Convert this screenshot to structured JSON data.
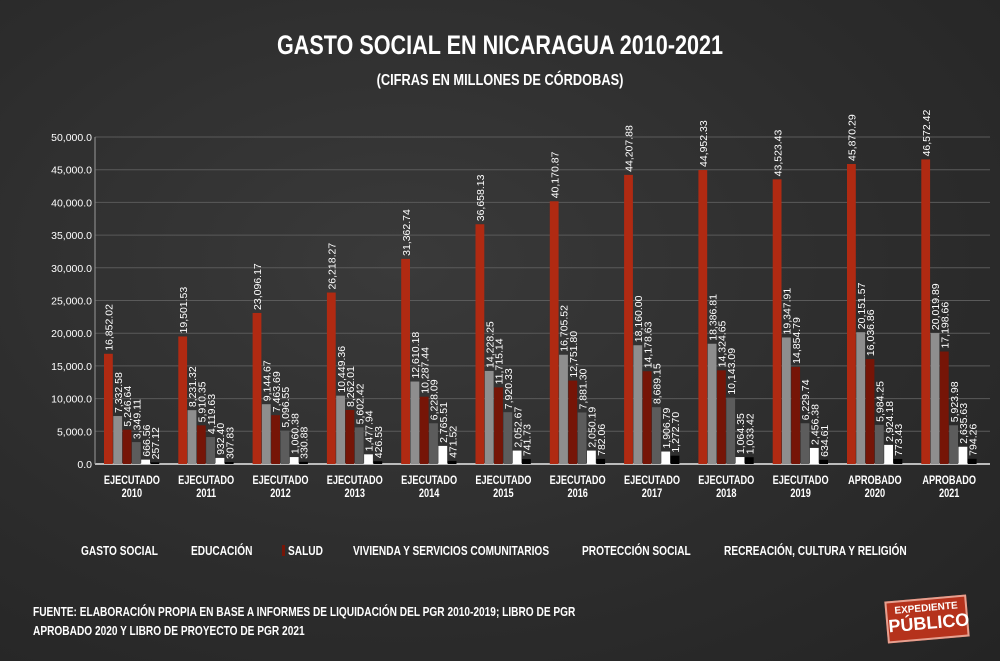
{
  "chart_data": {
    "type": "bar",
    "title": "GASTO SOCIAL EN NICARAGUA 2010-2021",
    "subtitle": "(CIFRAS EN MILLONES DE CÓRDOBAS)",
    "categories": [
      [
        "EJECUTADO",
        "2010"
      ],
      [
        "EJECUTADO",
        "2011"
      ],
      [
        "EJECUTADO",
        "2012"
      ],
      [
        "EJECUTADO",
        "2013"
      ],
      [
        "EJECUTADO",
        "2014"
      ],
      [
        "EJECUTADO",
        "2015"
      ],
      [
        "EJECUTADO",
        "2016"
      ],
      [
        "EJECUTADO",
        "2017"
      ],
      [
        "EJECUTADO",
        "2018"
      ],
      [
        "EJECUTADO",
        "2019"
      ],
      [
        "APROBADO",
        "2020"
      ],
      [
        "APROBADO",
        "2021"
      ]
    ],
    "series": [
      {
        "name": "GASTO SOCIAL",
        "color": "#b02a12",
        "values": [
          16852.02,
          19501.53,
          23096.17,
          26218.27,
          31362.74,
          36658.13,
          40170.87,
          44207.88,
          44952.33,
          43523.43,
          45870.29,
          46572.42
        ]
      },
      {
        "name": "EDUCACIÓN",
        "color": "#8e8e8e",
        "values": [
          7332.58,
          8231.32,
          9144.67,
          10449.36,
          12610.18,
          14228.25,
          16705.52,
          18160.0,
          18386.81,
          19347.91,
          20151.57,
          20019.89
        ]
      },
      {
        "name": "SALUD",
        "color": "#761507",
        "values": [
          5246.64,
          5910.35,
          7463.69,
          8262.01,
          10287.44,
          11715.14,
          12751.8,
          14178.63,
          14324.65,
          14854.79,
          16036.86,
          17198.66
        ]
      },
      {
        "name": "VIVIENDA Y SERVICIOS COMUNITARIOS",
        "color": "#5c5c5c",
        "values": [
          3349.11,
          4119.63,
          5096.55,
          5602.42,
          6228.09,
          7920.33,
          7881.3,
          8689.15,
          10143.09,
          6229.74,
          5984.25,
          5923.98
        ]
      },
      {
        "name": "PROTECCIÓN SOCIAL",
        "color": "#ffffff",
        "values": [
          666.56,
          932.4,
          1060.38,
          1477.94,
          2765.51,
          2052.67,
          2050.19,
          1906.79,
          1064.35,
          2456.38,
          2924.18,
          2635.63
        ]
      },
      {
        "name": "RECREACIÓN, CULTURA Y RELIGIÓN",
        "color": "#000000",
        "values": [
          257.12,
          307.83,
          330.88,
          426.53,
          471.52,
          741.73,
          782.06,
          1272.7,
          1033.42,
          634.61,
          773.43,
          794.26
        ]
      }
    ],
    "ylim": [
      0,
      50000
    ],
    "yticks": [
      "0.0",
      "5,000.0",
      "10,000.0",
      "15,000.0",
      "20,000.0",
      "25,000.0",
      "30,000.0",
      "35,000.0",
      "40,000.0",
      "45,000.0",
      "50,000.0"
    ],
    "grid": true,
    "legend": "bottom"
  },
  "source": [
    "FUENTE: ELABORACIÓN PROPIA EN BASE A INFORMES DE LIQUIDACIÓN DEL PGR 2010-2019; LIBRO DE PGR",
    "APROBADO 2020 Y LIBRO DE PROYECTO DE PGR 2021"
  ],
  "logo": {
    "line1": "EXPEDIENTE",
    "line2": "PÚBLICO"
  }
}
